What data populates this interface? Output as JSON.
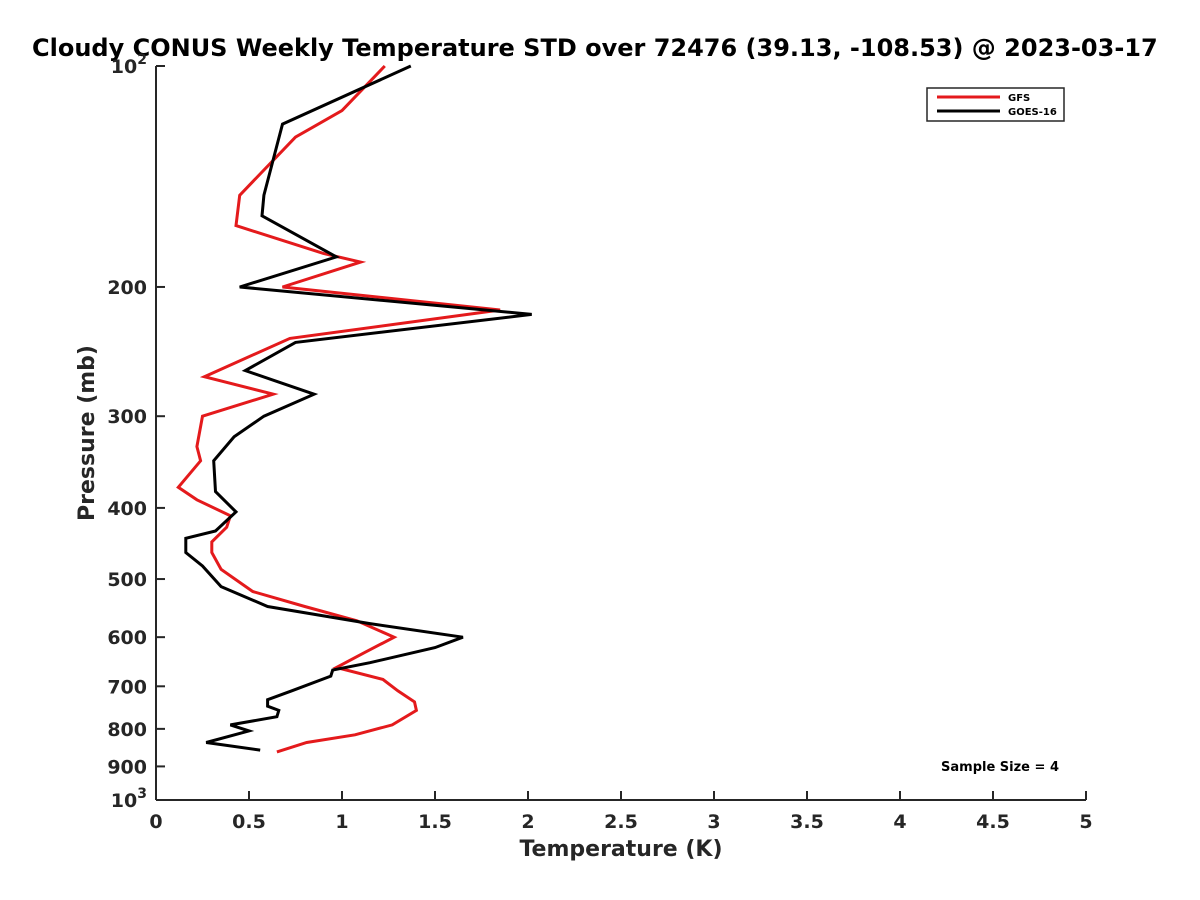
{
  "chart_data": {
    "type": "line",
    "title": "Cloudy CONUS Weekly Temperature STD over 72476 (39.13, -108.53) @ 2023-03-17",
    "xlabel": "Temperature (K)",
    "ylabel": "Pressure (mb)",
    "xlim": [
      0,
      5
    ],
    "ylim": [
      100,
      1000
    ],
    "y_scale": "log",
    "y_reversed": true,
    "x_ticks": [
      "0",
      "0.5",
      "1",
      "1.5",
      "2",
      "2.5",
      "3",
      "3.5",
      "4",
      "4.5",
      "5"
    ],
    "x_tick_values": [
      0,
      0.5,
      1,
      1.5,
      2,
      2.5,
      3,
      3.5,
      4,
      4.5,
      5
    ],
    "y_tick_labels": [
      {
        "value": 100,
        "label": "10",
        "sup": "2"
      },
      {
        "value": 200,
        "label": "200",
        "sup": ""
      },
      {
        "value": 300,
        "label": "300",
        "sup": ""
      },
      {
        "value": 400,
        "label": "400",
        "sup": ""
      },
      {
        "value": 500,
        "label": "500",
        "sup": ""
      },
      {
        "value": 600,
        "label": "600",
        "sup": ""
      },
      {
        "value": 700,
        "label": "700",
        "sup": ""
      },
      {
        "value": 800,
        "label": "800",
        "sup": ""
      },
      {
        "value": 900,
        "label": "900",
        "sup": ""
      },
      {
        "value": 1000,
        "label": "10",
        "sup": "3"
      }
    ],
    "legend_position": "top-right",
    "annotation": "Sample Size = 4",
    "grid": false,
    "series": [
      {
        "name": "GFS",
        "color": "#e41a1c",
        "points": [
          [
            1.23,
            100
          ],
          [
            1.0,
            115
          ],
          [
            0.75,
            125
          ],
          [
            0.45,
            150
          ],
          [
            0.43,
            165
          ],
          [
            0.9,
            180
          ],
          [
            1.1,
            185
          ],
          [
            0.68,
            200
          ],
          [
            1.85,
            215
          ],
          [
            0.72,
            235
          ],
          [
            0.26,
            265
          ],
          [
            0.63,
            280
          ],
          [
            0.25,
            300
          ],
          [
            0.22,
            330
          ],
          [
            0.24,
            345
          ],
          [
            0.12,
            375
          ],
          [
            0.22,
            390
          ],
          [
            0.4,
            410
          ],
          [
            0.38,
            425
          ],
          [
            0.3,
            445
          ],
          [
            0.3,
            460
          ],
          [
            0.35,
            485
          ],
          [
            0.52,
            520
          ],
          [
            0.8,
            545
          ],
          [
            1.08,
            570
          ],
          [
            1.28,
            600
          ],
          [
            1.12,
            630
          ],
          [
            0.97,
            660
          ],
          [
            1.22,
            685
          ],
          [
            1.3,
            710
          ],
          [
            1.39,
            735
          ],
          [
            1.4,
            755
          ],
          [
            1.27,
            790
          ],
          [
            1.07,
            815
          ],
          [
            0.81,
            835
          ],
          [
            0.65,
            860
          ]
        ]
      },
      {
        "name": "GOES-16",
        "color": "#000000",
        "points": [
          [
            1.37,
            100
          ],
          [
            0.68,
            120
          ],
          [
            0.58,
            150
          ],
          [
            0.57,
            160
          ],
          [
            0.97,
            182
          ],
          [
            0.45,
            200
          ],
          [
            2.02,
            218
          ],
          [
            0.75,
            238
          ],
          [
            0.48,
            260
          ],
          [
            0.85,
            280
          ],
          [
            0.58,
            300
          ],
          [
            0.42,
            320
          ],
          [
            0.31,
            345
          ],
          [
            0.32,
            380
          ],
          [
            0.43,
            405
          ],
          [
            0.32,
            430
          ],
          [
            0.16,
            440
          ],
          [
            0.16,
            460
          ],
          [
            0.25,
            480
          ],
          [
            0.35,
            512
          ],
          [
            0.6,
            545
          ],
          [
            1.15,
            575
          ],
          [
            1.65,
            600
          ],
          [
            1.5,
            620
          ],
          [
            1.15,
            650
          ],
          [
            0.95,
            665
          ],
          [
            0.94,
            678
          ],
          [
            0.73,
            710
          ],
          [
            0.6,
            730
          ],
          [
            0.6,
            745
          ],
          [
            0.66,
            755
          ],
          [
            0.65,
            770
          ],
          [
            0.4,
            790
          ],
          [
            0.5,
            805
          ],
          [
            0.27,
            835
          ],
          [
            0.56,
            855
          ]
        ]
      }
    ]
  }
}
